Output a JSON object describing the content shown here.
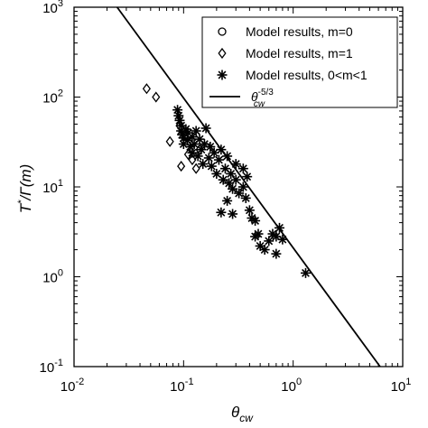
{
  "chart_data": {
    "type": "scatter",
    "x_scale": "log",
    "y_scale": "log",
    "xlim": [
      0.01,
      10
    ],
    "ylim": [
      0.1,
      1000
    ],
    "x_ticks": [
      {
        "value": 0.01,
        "base": "10",
        "exp": "-2"
      },
      {
        "value": 0.1,
        "base": "10",
        "exp": "-1"
      },
      {
        "value": 1,
        "base": "10",
        "exp": "0"
      },
      {
        "value": 10,
        "base": "10",
        "exp": "1"
      }
    ],
    "y_ticks": [
      {
        "value": 0.1,
        "base": "10",
        "exp": "-1"
      },
      {
        "value": 1,
        "base": "10",
        "exp": "0"
      },
      {
        "value": 10,
        "base": "10",
        "exp": "1"
      },
      {
        "value": 100,
        "base": "10",
        "exp": "2"
      },
      {
        "value": 1000,
        "base": "10",
        "exp": "3"
      }
    ],
    "xlabel": {
      "main": "θ",
      "sub": "cw"
    },
    "ylabel": {
      "t": "T",
      "sup": "*",
      "rest": "/Γ(m)"
    },
    "legend_position": "top-right",
    "grid": false,
    "series": [
      {
        "name": "Model results, m=0",
        "marker": "circle",
        "points": []
      },
      {
        "name": "Model results, m=1",
        "marker": "diamond",
        "points": [
          [
            0.046,
            124
          ],
          [
            0.056,
            100
          ],
          [
            0.075,
            32
          ],
          [
            0.092,
            48
          ],
          [
            0.095,
            17
          ],
          [
            0.11,
            23
          ],
          [
            0.12,
            20
          ],
          [
            0.13,
            16
          ],
          [
            0.14,
            26
          ]
        ]
      },
      {
        "name": "Model results, 0<m<1",
        "marker": "asterisk",
        "points": [
          [
            0.088,
            72
          ],
          [
            0.09,
            62
          ],
          [
            0.092,
            55
          ],
          [
            0.095,
            48
          ],
          [
            0.095,
            42
          ],
          [
            0.097,
            38
          ],
          [
            0.1,
            35
          ],
          [
            0.1,
            30
          ],
          [
            0.105,
            44
          ],
          [
            0.108,
            33
          ],
          [
            0.11,
            40
          ],
          [
            0.115,
            28
          ],
          [
            0.12,
            36
          ],
          [
            0.12,
            24
          ],
          [
            0.125,
            30
          ],
          [
            0.13,
            42
          ],
          [
            0.135,
            22
          ],
          [
            0.14,
            34
          ],
          [
            0.145,
            26
          ],
          [
            0.15,
            18
          ],
          [
            0.155,
            30
          ],
          [
            0.16,
            45
          ],
          [
            0.17,
            21
          ],
          [
            0.175,
            28
          ],
          [
            0.18,
            17
          ],
          [
            0.19,
            24
          ],
          [
            0.2,
            14
          ],
          [
            0.21,
            20
          ],
          [
            0.22,
            26
          ],
          [
            0.23,
            12
          ],
          [
            0.24,
            16
          ],
          [
            0.25,
            22
          ],
          [
            0.26,
            11
          ],
          [
            0.27,
            14
          ],
          [
            0.28,
            9.5
          ],
          [
            0.3,
            12
          ],
          [
            0.32,
            8.5
          ],
          [
            0.35,
            10
          ],
          [
            0.37,
            7.5
          ],
          [
            0.4,
            5.5
          ],
          [
            0.42,
            4.5
          ],
          [
            0.45,
            4.2
          ],
          [
            0.48,
            3.0
          ],
          [
            0.5,
            2.2
          ],
          [
            0.55,
            2.0
          ],
          [
            0.6,
            2.5
          ],
          [
            0.65,
            3.0
          ],
          [
            0.7,
            2.8
          ],
          [
            0.75,
            3.5
          ],
          [
            0.8,
            2.6
          ],
          [
            0.7,
            1.8
          ],
          [
            0.22,
            5.2
          ],
          [
            0.28,
            5.0
          ],
          [
            0.3,
            18
          ],
          [
            0.35,
            16
          ],
          [
            0.25,
            7.0
          ],
          [
            0.38,
            13
          ],
          [
            0.45,
            2.8
          ],
          [
            1.3,
            1.1
          ]
        ]
      },
      {
        "name": "θ_cw^-5/3",
        "marker": "line",
        "line": {
          "slope": -1.6667,
          "intercept_at_1": 2.1
        }
      }
    ],
    "legend": {
      "entries": [
        {
          "marker": "circle",
          "label": "Model results, m=0"
        },
        {
          "marker": "diamond",
          "label": "Model results, m=1"
        },
        {
          "marker": "asterisk",
          "label": "Model results, 0<m<1"
        },
        {
          "marker": "line",
          "label_main": "θ",
          "label_sup": "-5/3",
          "label_sub": "cw"
        }
      ]
    }
  }
}
